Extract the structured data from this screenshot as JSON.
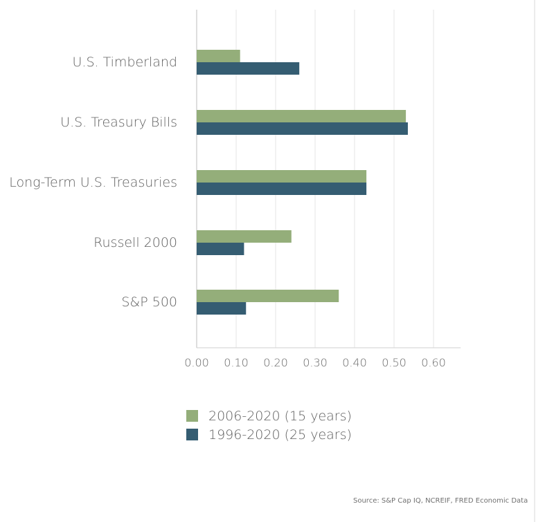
{
  "chart_data": {
    "type": "bar",
    "orientation": "horizontal",
    "categories": [
      "U.S. Timberland",
      "U.S. Treasury Bills",
      "Long-Term U.S. Treasuries",
      "Russell 2000",
      "S&P 500"
    ],
    "series": [
      {
        "name": "2006-2020 (15 years)",
        "color": "#94ae7a",
        "values": [
          0.11,
          0.53,
          0.43,
          0.24,
          0.36
        ]
      },
      {
        "name": "1996-2020 (25 years)",
        "color": "#355d72",
        "values": [
          0.26,
          0.535,
          0.43,
          0.12,
          0.125
        ]
      }
    ],
    "xticks": [
      "0.00",
      "0.10",
      "0.20",
      "0.30",
      "0.40",
      "0.50",
      "0.60"
    ],
    "xlim": [
      0,
      0.66
    ],
    "grid": true,
    "legend_position": "bottom",
    "title": "",
    "xlabel": "",
    "ylabel": ""
  },
  "source": "Source: S&P Cap IQ, NCREIF, FRED Economic Data"
}
